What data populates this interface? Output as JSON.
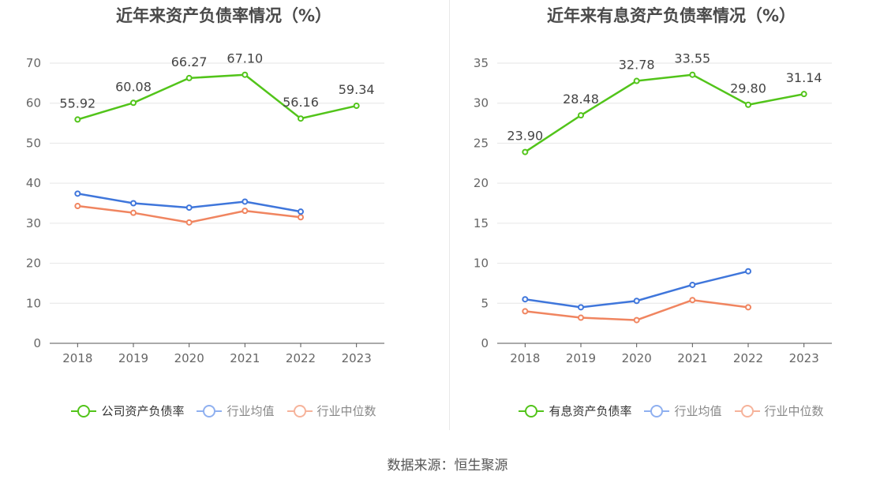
{
  "colors": {
    "company": "#52c41a",
    "avg": "#3f76db",
    "median": "#f08560",
    "grid": "#e6e6e6",
    "axis": "#666666"
  },
  "legend_faded": {
    "avg": "#8fb0f0",
    "median": "#f6b39b"
  },
  "footer": {
    "source": "数据来源：恒生聚源"
  },
  "chart_data": [
    {
      "type": "line",
      "title": "近年来资产负债率情况（%）",
      "categories": [
        "2018",
        "2019",
        "2020",
        "2021",
        "2022",
        "2023"
      ],
      "ylim": [
        0,
        70
      ],
      "yticks": [
        "0",
        "10",
        "20",
        "30",
        "40",
        "50",
        "60",
        "70"
      ],
      "grid": true,
      "legend_position": "bottom",
      "series": [
        {
          "name": "公司资产负债率",
          "key": "company",
          "values": [
            55.92,
            60.08,
            66.27,
            67.1,
            56.16,
            59.34
          ],
          "labels": [
            "55.92",
            "60.08",
            "66.27",
            "67.10",
            "56.16",
            "59.34"
          ]
        },
        {
          "name": "行业均值",
          "key": "avg",
          "values": [
            37.4,
            35.0,
            33.9,
            35.4,
            32.9,
            null
          ]
        },
        {
          "name": "行业中位数",
          "key": "median",
          "values": [
            34.3,
            32.6,
            30.2,
            33.1,
            31.5,
            null
          ]
        }
      ]
    },
    {
      "type": "line",
      "title": "近年来有息资产负债率情况（%）",
      "categories": [
        "2018",
        "2019",
        "2020",
        "2021",
        "2022",
        "2023"
      ],
      "ylim": [
        0,
        35
      ],
      "yticks": [
        "0",
        "5",
        "10",
        "15",
        "20",
        "25",
        "30",
        "35"
      ],
      "grid": true,
      "legend_position": "bottom",
      "series": [
        {
          "name": "有息资产负债率",
          "key": "company",
          "values": [
            23.9,
            28.48,
            32.78,
            33.55,
            29.8,
            31.14
          ],
          "labels": [
            "23.90",
            "28.48",
            "32.78",
            "33.55",
            "29.80",
            "31.14"
          ]
        },
        {
          "name": "行业均值",
          "key": "avg",
          "values": [
            5.5,
            4.5,
            5.3,
            7.3,
            9.0,
            null
          ]
        },
        {
          "name": "行业中位数",
          "key": "median",
          "values": [
            4.0,
            3.2,
            2.9,
            5.4,
            4.5,
            null
          ]
        }
      ]
    }
  ]
}
